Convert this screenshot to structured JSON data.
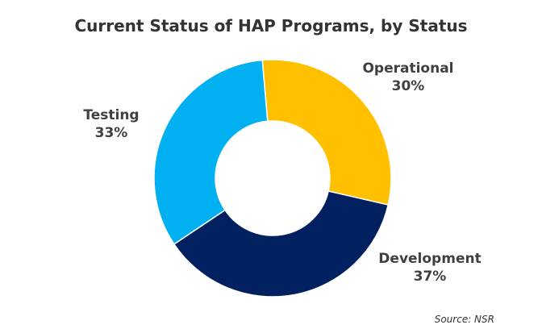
{
  "chart_data": {
    "type": "pie",
    "variant": "donut",
    "title": "Current Status of HAP Programs, by Status",
    "source": "Source: NSR",
    "legend": "none",
    "slices": [
      {
        "label": "Operational",
        "value": 30,
        "display": "30%",
        "color": "#FFC000"
      },
      {
        "label": "Development",
        "value": 37,
        "display": "37%",
        "color": "#002060"
      },
      {
        "label": "Testing",
        "value": 33,
        "display": "33%",
        "color": "#00B0F0"
      }
    ],
    "start_angle_deg": -5,
    "direction": "clockwise"
  }
}
